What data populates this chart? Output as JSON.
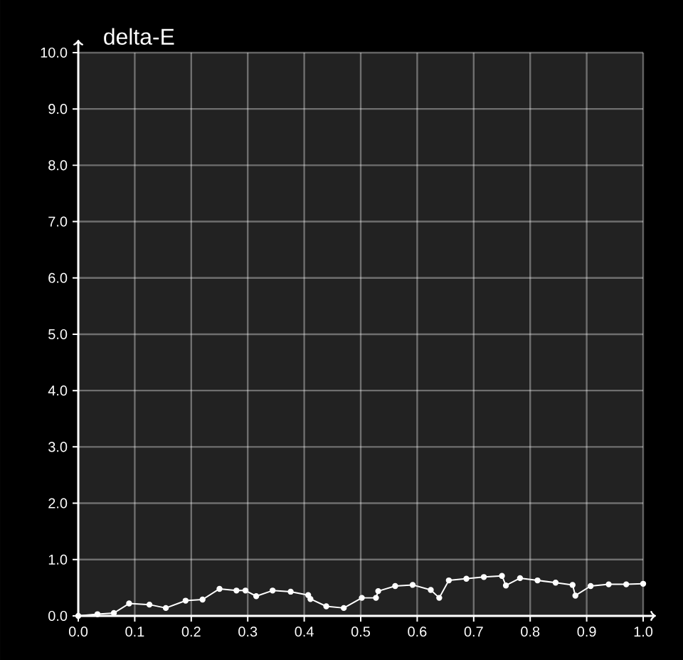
{
  "chart_data": {
    "type": "line",
    "ylabel": "delta-E",
    "x": [
      0,
      0.034,
      0.063,
      0.09,
      0.126,
      0.155,
      0.19,
      0.22,
      0.25,
      0.28,
      0.296,
      0.315,
      0.344,
      0.376,
      0.407,
      0.411,
      0.439,
      0.47,
      0.502,
      0.527,
      0.531,
      0.561,
      0.592,
      0.624,
      0.639,
      0.656,
      0.687,
      0.718,
      0.75,
      0.757,
      0.782,
      0.813,
      0.845,
      0.875,
      0.88,
      0.907,
      0.939,
      0.97,
      1.0
    ],
    "series": [
      {
        "color": "#ffffff",
        "values": [
          0,
          0.03,
          0.05,
          0.22,
          0.2,
          0.14,
          0.27,
          0.29,
          0.48,
          0.45,
          0.45,
          0.35,
          0.45,
          0.43,
          0.37,
          0.3,
          0.17,
          0.14,
          0.32,
          0.32,
          0.44,
          0.53,
          0.55,
          0.46,
          0.32,
          0.63,
          0.66,
          0.69,
          0.71,
          0.54,
          0.67,
          0.63,
          0.59,
          0.55,
          0.36,
          0.53,
          0.56,
          0.56,
          0.57
        ]
      }
    ],
    "xlim": [
      0,
      1
    ],
    "ylim": [
      0,
      10
    ],
    "xticks": [
      {
        "value": 0,
        "label": "0.0"
      },
      {
        "value": 0.1,
        "label": "0.1"
      },
      {
        "value": 0.2,
        "label": "0.2"
      },
      {
        "value": 0.3,
        "label": "0.3"
      },
      {
        "value": 0.4,
        "label": "0.4"
      },
      {
        "value": 0.5,
        "label": "0.5"
      },
      {
        "value": 0.6,
        "label": "0.6"
      },
      {
        "value": 0.7,
        "label": "0.7"
      },
      {
        "value": 0.8,
        "label": "0.8"
      },
      {
        "value": 0.9,
        "label": "0.9"
      },
      {
        "value": 1,
        "label": "1.0"
      }
    ],
    "yticks": [
      {
        "value": 0,
        "label": "0.0"
      },
      {
        "value": 1,
        "label": "1.0"
      },
      {
        "value": 2,
        "label": "2.0"
      },
      {
        "value": 3,
        "label": "3.0"
      },
      {
        "value": 4,
        "label": "4.0"
      },
      {
        "value": 5,
        "label": "5.0"
      },
      {
        "value": 6,
        "label": "6.0"
      },
      {
        "value": 7,
        "label": "7.0"
      },
      {
        "value": 8,
        "label": "8.0"
      },
      {
        "value": 9,
        "label": "9.0"
      },
      {
        "value": 10,
        "label": "10.0"
      }
    ],
    "grid": true,
    "marker": "circle",
    "line_style": "solid"
  }
}
